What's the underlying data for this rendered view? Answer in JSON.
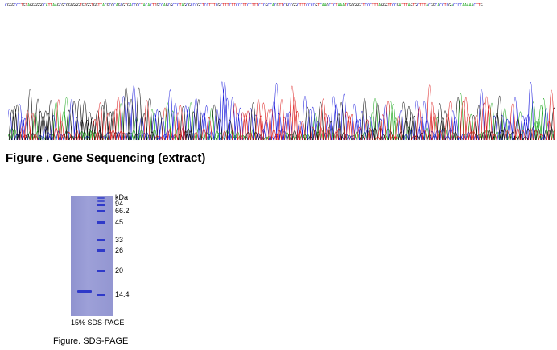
{
  "sequencing": {
    "sequence": "CGGGCCCTGTAGGGGGGCATTAAGCGCGGGGGGTGTGGTGGTTACGCGCAGCGTGACCGCTACACTTGCCAGCGCCCTAGCGCCCGCTCCTTTCGCTTTCTTCCCTTCCTTTCTCGCCACGTTCGCCGGCTTTCCCCGTCAAGCTCTAAATCGGGGGCTCCCTTTAGGGTTCCGATTTAGTGCTTTACGGCACCTCGACCCCAAAAACTTG",
    "caption": "Figure . Gene Sequencing (extract)",
    "base_colors": {
      "A": "#22aa22",
      "C": "#2222dd",
      "G": "#111111",
      "T": "#dd2222"
    }
  },
  "sds_page": {
    "unit_label": "kDa",
    "markers": [
      "94",
      "66.2",
      "45",
      "33",
      "26",
      "20",
      "14.4"
    ],
    "gel_label": "15% SDS-PAGE",
    "caption": "Figure. SDS-PAGE",
    "gel_color": "#9598d3",
    "band_color": "#2f39c9"
  }
}
